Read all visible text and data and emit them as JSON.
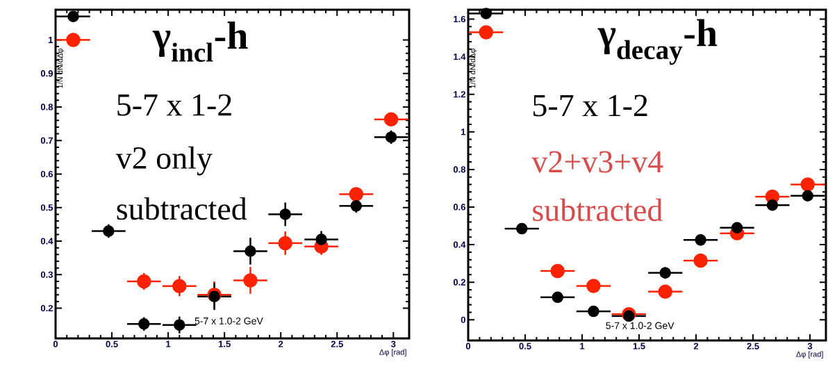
{
  "chart_data": [
    {
      "type": "scatter",
      "title": "γ$_{incl}$-h",
      "xlabel": "Δφ [rad]",
      "ylabel": "1/N dN/dΔφ",
      "annotations": [
        "5-7 x 1-2",
        "v2 only",
        "subtracted",
        "5-7 x 1.0-2 GeV"
      ],
      "x": [
        0.157,
        0.471,
        0.785,
        1.1,
        1.41,
        1.73,
        2.04,
        2.36,
        2.67,
        2.98
      ],
      "series": [
        {
          "color": "#ff2200",
          "values": [
            1.0,
            null,
            0.28,
            0.266,
            0.24,
            0.283,
            0.394,
            0.384,
            0.54,
            0.763
          ],
          "errors": [
            0.02,
            null,
            0.025,
            0.03,
            0.04,
            0.04,
            0.035,
            0.025,
            0.02,
            0.02
          ],
          "xerrors": [
            0.15,
            null,
            0.15,
            0.15,
            0.15,
            0.15,
            0.15,
            0.15,
            0.15,
            0.15
          ]
        },
        {
          "color": "#000000",
          "values": [
            1.07,
            0.43,
            0.153,
            0.15,
            0.235,
            0.37,
            0.48,
            0.405,
            0.505,
            0.71
          ],
          "errors": [
            0.015,
            0.02,
            0.02,
            0.025,
            0.04,
            0.04,
            0.035,
            0.025,
            0.02,
            0.02
          ],
          "xerrors": [
            0.15,
            0.15,
            0.15,
            0.15,
            0.15,
            0.15,
            0.15,
            0.15,
            0.15,
            0.15
          ]
        }
      ],
      "xlim": [
        0,
        3.14
      ],
      "ylim": [
        0.11,
        1.09
      ],
      "xticks": [
        0,
        0.5,
        1,
        1.5,
        2,
        2.5,
        3
      ],
      "yticks": [
        0.2,
        0.3,
        0.4,
        0.5,
        0.6,
        0.7,
        0.8,
        0.9,
        1
      ],
      "marker": "circle"
    },
    {
      "type": "scatter",
      "title": "γ$_{decay}$-h",
      "xlabel": "Δφ [rad]",
      "ylabel": "1/N dN/dΔφ",
      "annotations": [
        "5-7 x 1-2",
        "v2+v3+v4",
        "subtracted",
        "5-7 x 1.0-2 GeV"
      ],
      "x": [
        0.157,
        0.471,
        0.785,
        1.1,
        1.41,
        1.73,
        2.04,
        2.36,
        2.67,
        2.98
      ],
      "series": [
        {
          "color": "#ff2200",
          "values": [
            1.53,
            null,
            0.26,
            0.18,
            0.03,
            0.15,
            0.315,
            0.46,
            0.655,
            0.72
          ],
          "errors": [
            0.015,
            null,
            0.015,
            0.02,
            null,
            0.03,
            0.03,
            0.02,
            0.02,
            0.02
          ],
          "xerrors": [
            0.15,
            null,
            0.15,
            0.15,
            0.15,
            0.15,
            0.15,
            0.15,
            0.15,
            0.15
          ]
        },
        {
          "color": "#000000",
          "values": [
            1.63,
            0.485,
            0.12,
            0.045,
            0.02,
            0.25,
            0.425,
            0.49,
            0.61,
            0.66
          ],
          "errors": [
            0.015,
            0.015,
            0.015,
            0.02,
            0.03,
            0.03,
            0.03,
            0.02,
            0.02,
            0.02
          ],
          "xerrors": [
            0.15,
            0.15,
            0.15,
            0.15,
            0.15,
            0.15,
            0.15,
            0.15,
            0.15,
            0.15
          ]
        }
      ],
      "xlim": [
        0,
        3.14
      ],
      "ylim": [
        -0.11,
        1.65
      ],
      "xticks": [
        0,
        0.5,
        1,
        1.5,
        2,
        2.5,
        3
      ],
      "yticks": [
        0,
        0.2,
        0.4,
        0.6,
        0.8,
        1,
        1.2,
        1.4,
        1.6
      ],
      "marker": "circle"
    }
  ]
}
